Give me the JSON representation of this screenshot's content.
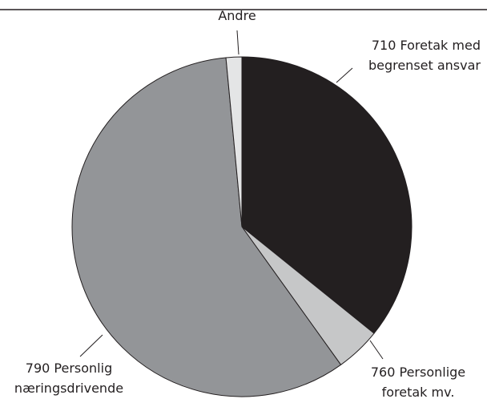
{
  "chart_data": {
    "type": "pie",
    "categories": [
      [
        "710 Foretak med",
        "begrenset ansvar"
      ],
      [
        "760 Personlige",
        "foretak mv."
      ],
      [
        "790 Personlig",
        "næringsdrivende"
      ],
      [
        "Andre"
      ]
    ],
    "values": [
      35.8,
      4.3,
      58.4,
      1.5
    ],
    "colors": [
      "#231f20",
      "#c6c7c8",
      "#939598",
      "#e4e5e6"
    ]
  }
}
